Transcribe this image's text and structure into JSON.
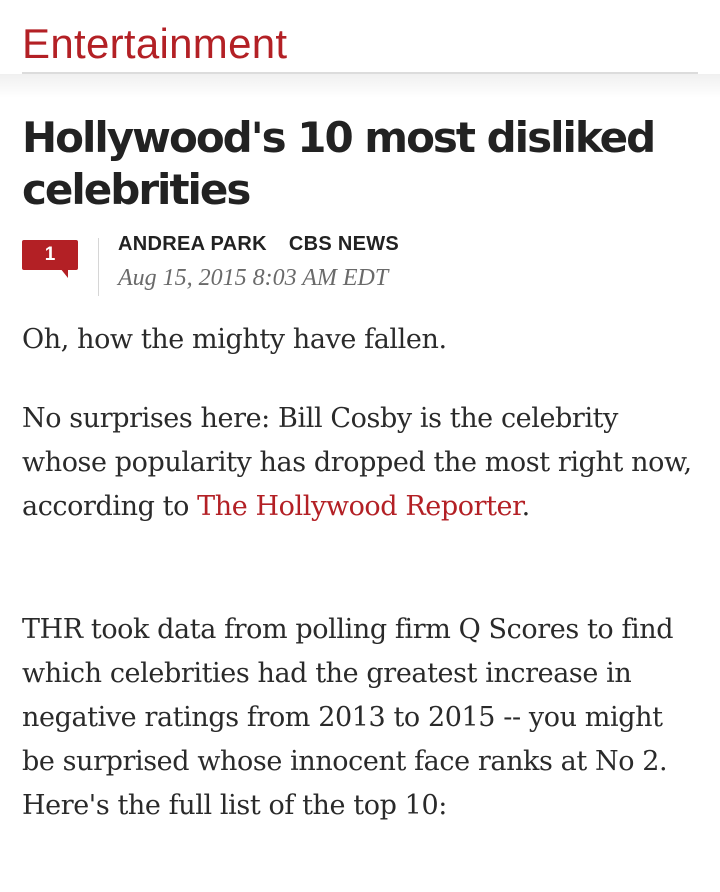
{
  "section": {
    "title": "Entertainment"
  },
  "article": {
    "headline": "Hollywood's 10 most disliked celebrities",
    "comments_count": "1",
    "author": "ANDREA PARK",
    "source": "CBS NEWS",
    "timestamp": "Aug 15, 2015 8:03 AM EDT",
    "paragraphs": {
      "p1": "Oh, how the mighty have fallen.",
      "p2_before_link": "No surprises here: Bill Cosby is the celebrity whose popularity has dropped the most right now, according to ",
      "p2_link": "The Hollywood Reporter",
      "p2_after_link": ".",
      "p3": "THR took data from polling firm Q Scores to find which celebrities had the greatest increase in negative ratings from 2013 to 2015 -- you might be surprised whose innocent face ranks at No 2. Here's the full list of the top 10:"
    }
  },
  "colors": {
    "accent": "#b32025",
    "headline": "#222222",
    "body": "#2a2a2a",
    "meta": "#6a6a6a"
  },
  "icons": {
    "comment": "comment-bubble-icon"
  }
}
